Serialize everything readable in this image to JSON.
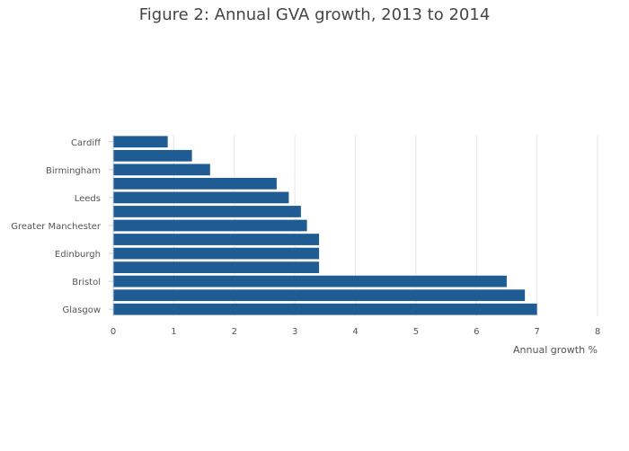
{
  "chart_data": {
    "type": "bar",
    "orientation": "horizontal",
    "title": "Figure 2: Annual GVA growth, 2013 to 2014",
    "xlabel": "Annual growth %",
    "ylabel": "",
    "categories": [
      "Cardiff",
      "",
      "Birmingham",
      "",
      "Leeds",
      "",
      "Greater Manchester",
      "",
      "Edinburgh",
      "",
      "Bristol",
      "",
      "Glasgow"
    ],
    "values": [
      0.9,
      1.3,
      1.6,
      2.7,
      2.9,
      3.1,
      3.2,
      3.4,
      3.4,
      3.4,
      6.5,
      6.8,
      7.0
    ],
    "xlim": [
      0,
      8
    ],
    "xticks": [
      0,
      1,
      2,
      3,
      4,
      5,
      6,
      7,
      8
    ],
    "grid": true,
    "bar_color": "#1f5c94"
  }
}
